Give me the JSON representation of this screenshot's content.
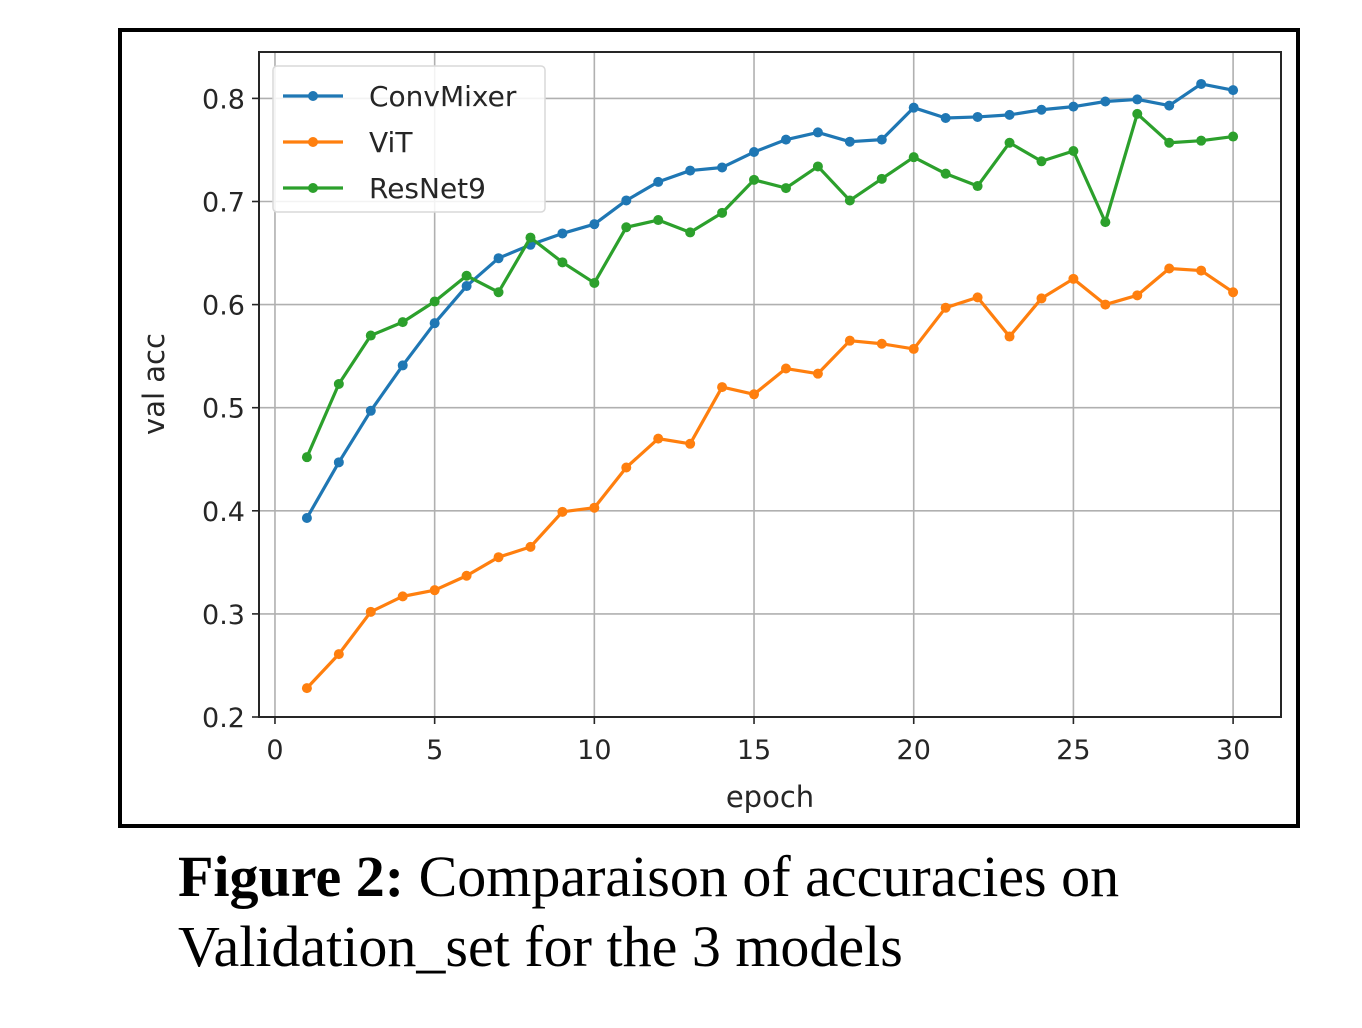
{
  "caption": {
    "label": "Figure 2:",
    "text": "Comparaison of accuracies on Validation_set for the 3 models"
  },
  "chart_data": {
    "type": "line",
    "title": "",
    "xlabel": "epoch",
    "ylabel": "val acc",
    "xlim": [
      -0.5,
      31.5
    ],
    "ylim": [
      0.2,
      0.845
    ],
    "xticks": [
      0,
      5,
      10,
      15,
      20,
      25,
      30
    ],
    "yticks": [
      0.2,
      0.3,
      0.4,
      0.5,
      0.6,
      0.7,
      0.8
    ],
    "grid": true,
    "legend_position": "top-left",
    "x": [
      1,
      2,
      3,
      4,
      5,
      6,
      7,
      8,
      9,
      10,
      11,
      12,
      13,
      14,
      15,
      16,
      17,
      18,
      19,
      20,
      21,
      22,
      23,
      24,
      25,
      26,
      27,
      28,
      29,
      30
    ],
    "series": [
      {
        "name": "ConvMixer",
        "color": "#1f77b4",
        "values": [
          0.393,
          0.447,
          0.497,
          0.541,
          0.582,
          0.618,
          0.645,
          0.658,
          0.669,
          0.678,
          0.701,
          0.719,
          0.73,
          0.733,
          0.748,
          0.76,
          0.767,
          0.758,
          0.76,
          0.791,
          0.781,
          0.782,
          0.784,
          0.789,
          0.792,
          0.797,
          0.799,
          0.793,
          0.814,
          0.808
        ]
      },
      {
        "name": "ViT",
        "color": "#ff7f0e",
        "values": [
          0.228,
          0.261,
          0.302,
          0.317,
          0.323,
          0.337,
          0.355,
          0.365,
          0.399,
          0.403,
          0.442,
          0.47,
          0.465,
          0.52,
          0.513,
          0.538,
          0.533,
          0.565,
          0.562,
          0.557,
          0.597,
          0.607,
          0.569,
          0.606,
          0.625,
          0.6,
          0.609,
          0.635,
          0.633,
          0.612
        ]
      },
      {
        "name": "ResNet9",
        "color": "#2ca02c",
        "values": [
          0.452,
          0.523,
          0.57,
          0.583,
          0.603,
          0.628,
          0.612,
          0.665,
          0.641,
          0.621,
          0.675,
          0.682,
          0.67,
          0.689,
          0.721,
          0.713,
          0.734,
          0.701,
          0.722,
          0.743,
          0.727,
          0.715,
          0.757,
          0.739,
          0.749,
          0.68,
          0.785,
          0.757,
          0.759,
          0.763
        ]
      }
    ]
  }
}
